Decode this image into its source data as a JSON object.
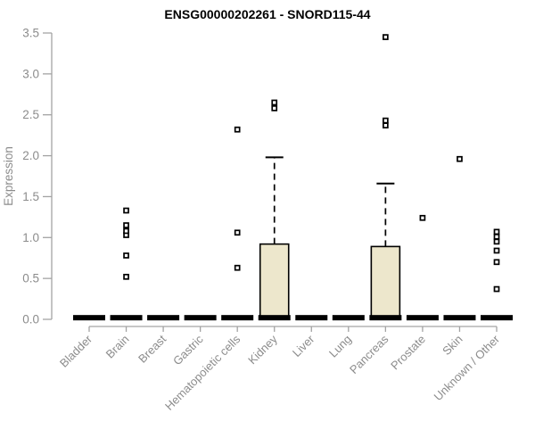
{
  "chart_data": {
    "type": "boxplot",
    "title": "ENSG00000202261 - SNORD115-44",
    "ylabel": "Expression",
    "xlabel": "",
    "ylim": [
      0.0,
      3.5
    ],
    "yticks": [
      0.0,
      0.5,
      1.0,
      1.5,
      2.0,
      2.5,
      3.0,
      3.5
    ],
    "grid": "off",
    "legend": "none",
    "categories": [
      "Bladder",
      "Brain",
      "Breast",
      "Gastric",
      "Hematopoietic cells",
      "Kidney",
      "Liver",
      "Lung",
      "Pancreas",
      "Prostate",
      "Skin",
      "Unknown / Other"
    ],
    "boxes": [
      {
        "category": "Bladder",
        "whisker_low": 0,
        "q1": 0,
        "median": 0.02,
        "q3": 0.03,
        "whisker_high": 0.03,
        "outliers": []
      },
      {
        "category": "Brain",
        "whisker_low": 0,
        "q1": 0,
        "median": 0.02,
        "q3": 0.03,
        "whisker_high": 0.03,
        "outliers": [
          0.52,
          0.78,
          1.03,
          1.08,
          1.15,
          1.33
        ]
      },
      {
        "category": "Breast",
        "whisker_low": 0,
        "q1": 0,
        "median": 0.02,
        "q3": 0.03,
        "whisker_high": 0.03,
        "outliers": []
      },
      {
        "category": "Gastric",
        "whisker_low": 0,
        "q1": 0,
        "median": 0.02,
        "q3": 0.03,
        "whisker_high": 0.03,
        "outliers": []
      },
      {
        "category": "Hematopoietic cells",
        "whisker_low": 0,
        "q1": 0,
        "median": 0.02,
        "q3": 0.03,
        "whisker_high": 0.03,
        "outliers": [
          0.63,
          1.06,
          2.32
        ]
      },
      {
        "category": "Kidney",
        "whisker_low": 0,
        "q1": 0,
        "median": 0.02,
        "q3": 0.92,
        "whisker_high": 1.98,
        "outliers": [
          2.58,
          2.65
        ]
      },
      {
        "category": "Liver",
        "whisker_low": 0,
        "q1": 0,
        "median": 0.02,
        "q3": 0.03,
        "whisker_high": 0.03,
        "outliers": []
      },
      {
        "category": "Lung",
        "whisker_low": 0,
        "q1": 0,
        "median": 0.02,
        "q3": 0.03,
        "whisker_high": 0.03,
        "outliers": []
      },
      {
        "category": "Pancreas",
        "whisker_low": 0,
        "q1": 0,
        "median": 0.02,
        "q3": 0.89,
        "whisker_high": 1.66,
        "outliers": [
          2.37,
          2.43,
          3.45
        ]
      },
      {
        "category": "Prostate",
        "whisker_low": 0,
        "q1": 0,
        "median": 0.02,
        "q3": 0.03,
        "whisker_high": 0.03,
        "outliers": [
          1.24
        ]
      },
      {
        "category": "Skin",
        "whisker_low": 0,
        "q1": 0,
        "median": 0.02,
        "q3": 0.03,
        "whisker_high": 0.03,
        "outliers": [
          1.96
        ]
      },
      {
        "category": "Unknown / Other",
        "whisker_low": 0,
        "q1": 0,
        "median": 0.02,
        "q3": 0.03,
        "whisker_high": 0.03,
        "outliers": [
          0.37,
          0.7,
          0.84,
          0.95,
          1.01,
          1.07
        ]
      }
    ],
    "colors": {
      "box_fill": "#EDE7CC",
      "box_border": "#000000",
      "median": "#000000",
      "outlier_border": "#000000",
      "outlier_fill": "#ffffff",
      "axis_line": "#A3A3A3",
      "tick_label": "#8C8C8C",
      "title": "#000000",
      "background": "#ffffff"
    }
  }
}
